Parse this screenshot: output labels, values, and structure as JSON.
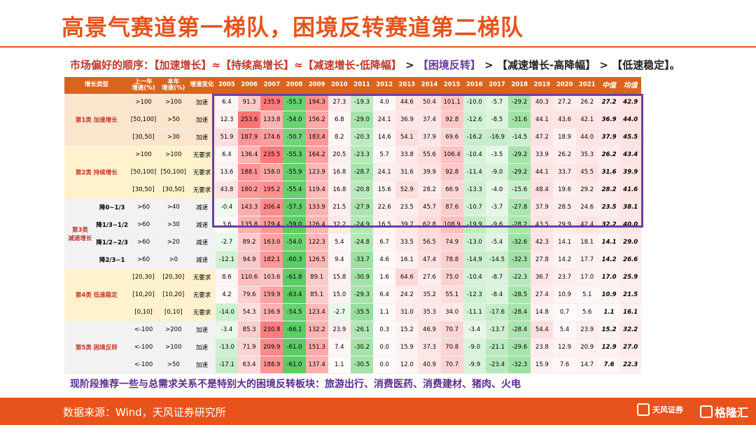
{
  "title": "高景气赛道第一梯队，困境反转赛道第二梯队",
  "subtitle": [
    {
      "text": "市场偏好的顺序：",
      "color": "#c0392b"
    },
    {
      "text": "【加速增长】≈【持续高增长】≈【减速增长-低降幅】",
      "color": "#c0392b"
    },
    {
      "text": " > ",
      "color": "#222222"
    },
    {
      "text": "【困境反转】",
      "color": "#6b3fa0"
    },
    {
      "text": " > 【减速增长-高降幅】 > 【低速稳定】。",
      "color": "#222222"
    }
  ],
  "table": {
    "headers": [
      "增长类型",
      "",
      "上一年\n增速(%)",
      "本年\n增速(%)",
      "增速变化",
      "2005",
      "2006",
      "2007",
      "2008",
      "2009",
      "2010",
      "2011",
      "2012",
      "2013",
      "2014",
      "2015",
      "2016",
      "2017",
      "2018",
      "2019",
      "2020",
      "2021",
      "中值",
      "均值"
    ],
    "groups": [
      {
        "label": "第1类 加速增长",
        "bg": "#fce5cd",
        "rows": [
          {
            "sub": "",
            "prev": ">100",
            "cur": ">100",
            "chg": "加速",
            "vals": [
              "6.4",
              "91.3",
              "235.9",
              "-55.3",
              "194.3",
              "27.3",
              "-19.3",
              "4.0",
              "44.6",
              "50.4",
              "101.1",
              "-10.0",
              "-5.7",
              "-29.2",
              "40.3",
              "27.2",
              "26.2"
            ],
            "med": "27.2",
            "avg": "42.9"
          },
          {
            "sub": "",
            "prev": "[50,100]",
            "cur": ">50",
            "chg": "加速",
            "vals": [
              "12.3",
              "253.6",
              "133.8",
              "-54.0",
              "156.2",
              "6.8",
              "-29.0",
              "24.1",
              "36.9",
              "37.4",
              "92.8",
              "-12.6",
              "-8.5",
              "-31.6",
              "44.1",
              "43.6",
              "42.1"
            ],
            "med": "36.9",
            "avg": "44.0"
          },
          {
            "sub": "",
            "prev": "[30,50]",
            "cur": ">30",
            "chg": "加速",
            "vals": [
              "51.9",
              "187.9",
              "174.6",
              "-50.7",
              "183.4",
              "8.2",
              "-20.3",
              "14.6",
              "54.1",
              "37.9",
              "69.6",
              "-16.2",
              "-16.9",
              "-14.5",
              "47.2",
              "18.9",
              "44.0"
            ],
            "med": "37.9",
            "avg": "45.5"
          }
        ]
      },
      {
        "label": "第2类 持续增长",
        "bg": "#fff2cc",
        "rows": [
          {
            "sub": "",
            "prev": ">100",
            "cur": ">100",
            "chg": "无要求",
            "vals": [
              "6.4",
              "136.4",
              "235.5",
              "-55.3",
              "164.2",
              "20.5",
              "-23.3",
              "5.7",
              "33.8",
              "55.6",
              "106.4",
              "-10.4",
              "-3.5",
              "-29.2",
              "33.9",
              "26.2",
              "35.3"
            ],
            "med": "26.2",
            "avg": "43.4"
          },
          {
            "sub": "",
            "prev": "[50,100]",
            "cur": "[50,100]",
            "chg": "无要求",
            "vals": [
              "13.6",
              "188.1",
              "158.0",
              "-55.9",
              "123.9",
              "16.8",
              "-28.7",
              "24.1",
              "31.6",
              "39.9",
              "92.8",
              "-11.4",
              "-9.0",
              "-29.2",
              "44.1",
              "33.7",
              "45.5"
            ],
            "med": "31.6",
            "avg": "39.9"
          },
          {
            "sub": "",
            "prev": "[30,50]",
            "cur": "[30,50]",
            "chg": "无要求",
            "vals": [
              "43.8",
              "180.2",
              "195.2",
              "-55.4",
              "119.4",
              "16.8",
              "-20.8",
              "15.6",
              "52.9",
              "28.2",
              "66.9",
              "-13.3",
              "-4.0",
              "-15.6",
              "48.4",
              "19.6",
              "29.2"
            ],
            "med": "28.2",
            "avg": "41.6"
          }
        ]
      },
      {
        "label": "第3类\n减速增长",
        "bg": "#f2f2f2",
        "rows": [
          {
            "sub": "降0~1/3",
            "prev": ">60",
            "cur": ">40",
            "chg": "减速",
            "vals": [
              "-0.4",
              "143.3",
              "206.4",
              "-57.3",
              "133.9",
              "21.5",
              "-27.9",
              "22.6",
              "23.5",
              "45.7",
              "87.6",
              "-10.7",
              "-3.7",
              "-27.8",
              "37.9",
              "28.5",
              "24.6"
            ],
            "med": "23.5",
            "avg": "38.1"
          },
          {
            "sub": "降1/3~1/2",
            "prev": ">60",
            "cur": ">30",
            "chg": "减速",
            "vals": [
              "3.6",
              "135.8",
              "179.4",
              "-59.0",
              "126.4",
              "32.2",
              "-24.9",
              "16.5",
              "39.7",
              "62.8",
              "108.9",
              "-19.9",
              "-9.6",
              "-28.2",
              "43.5",
              "29.9",
              "42.4"
            ],
            "med": "32.2",
            "avg": "40.0"
          },
          {
            "sub": "降1/2~2/3",
            "prev": ">60",
            "cur": ">20",
            "chg": "减速",
            "vals": [
              "-2.7",
              "89.2",
              "163.0",
              "-54.0",
              "122.3",
              "5.4",
              "-24.8",
              "6.7",
              "33.5",
              "56.5",
              "74.9",
              "-13.0",
              "-5.4",
              "-32.6",
              "42.3",
              "14.1",
              "18.1"
            ],
            "med": "14.1",
            "avg": "29.0"
          },
          {
            "sub": "降2/3~1",
            "prev": ">60",
            "cur": ">0",
            "chg": "减速",
            "vals": [
              "-12.1",
              "94.9",
              "182.1",
              "-60.3",
              "126.5",
              "9.4",
              "-33.7",
              "4.6",
              "16.1",
              "47.4",
              "78.8",
              "-14.9",
              "-14.5",
              "-32.3",
              "27.8",
              "14.2",
              "17.7"
            ],
            "med": "14.2",
            "avg": "26.6"
          }
        ]
      },
      {
        "label": "第4类 低速稳定",
        "bg": "#fff2cc",
        "rows": [
          {
            "sub": "",
            "prev": "[20,30]",
            "cur": "[20,30]",
            "chg": "无要求",
            "vals": [
              "8.6",
              "110.6",
              "103.6",
              "-61.8",
              "89.1",
              "15.8",
              "-30.9",
              "1.6",
              "64.6",
              "27.6",
              "75.0",
              "-10.4",
              "-8.7",
              "-22.3",
              "36.7",
              "23.7",
              "17.0"
            ],
            "med": "17.0",
            "avg": "25.9"
          },
          {
            "sub": "",
            "prev": "[10,20]",
            "cur": "[10,20]",
            "chg": "无要求",
            "vals": [
              "4.2",
              "79.6",
              "159.9",
              "-63.4",
              "85.1",
              "15.0",
              "-29.3",
              "6.4",
              "24.2",
              "35.2",
              "55.1",
              "-12.3",
              "-8.4",
              "-28.5",
              "27.4",
              "10.9",
              "5.1"
            ],
            "med": "10.9",
            "avg": "21.5"
          },
          {
            "sub": "",
            "prev": "[0,10]",
            "cur": "[0,10]",
            "chg": "无要求",
            "vals": [
              "-14.0",
              "54.3",
              "136.9",
              "-54.5",
              "123.4",
              "-2.7",
              "-35.5",
              "1.1",
              "31.0",
              "35.3",
              "34.0",
              "-11.1",
              "-17.6",
              "-28.4",
              "14.8",
              "0.7",
              "5.6"
            ],
            "med": "1.1",
            "avg": "16.1"
          }
        ]
      },
      {
        "label": "第5类 困境反转",
        "bg": "#f2f2f2",
        "rows": [
          {
            "sub": "",
            "prev": "<-100",
            "cur": ">200",
            "chg": "加速",
            "vals": [
              "-3.4",
              "85.3",
              "230.8",
              "-66.1",
              "132.2",
              "23.9",
              "-26.1",
              "0.3",
              "15.2",
              "46.9",
              "70.7",
              "-3.4",
              "-13.7",
              "-28.4",
              "54.4",
              "5.4",
              "23.9"
            ],
            "med": "15.2",
            "avg": "32.2"
          },
          {
            "sub": "",
            "prev": "<-100",
            "cur": ">100",
            "chg": "加速",
            "vals": [
              "-13.0",
              "71.9",
              "209.9",
              "-61.0",
              "151.3",
              "7.4",
              "-30.2",
              "0.0",
              "15.9",
              "37.3",
              "70.8",
              "-9.0",
              "-21.1",
              "-29.6",
              "23.8",
              "12.9",
              "20.9"
            ],
            "med": "12.9",
            "avg": "27.0"
          },
          {
            "sub": "",
            "prev": "<-100",
            "cur": ">50",
            "chg": "加速",
            "vals": [
              "-17.1",
              "63.4",
              "188.9",
              "-61.0",
              "137.4",
              "1.1",
              "-30.5",
              "0.0",
              "12.0",
              "40.9",
              "70.7",
              "-9.9",
              "-23.4",
              "-32.3",
              "15.9",
              "7.6",
              "14.7"
            ],
            "med": "7.6",
            "avg": "22.3"
          }
        ]
      }
    ]
  },
  "bottom_note": "现阶段推荐一些与总需求关系不是特别大的困境反转板块：旅游出行、消费医药、消费建材、猪肉、火电",
  "footer": {
    "source": "数据来源：Wind，天风证券研究所",
    "logo_tf": "天风证券",
    "logo_gl": "格隆汇"
  },
  "colors": {
    "accent": "#e8531b",
    "purple": "#6b3fa0",
    "header": "#d9641e"
  }
}
